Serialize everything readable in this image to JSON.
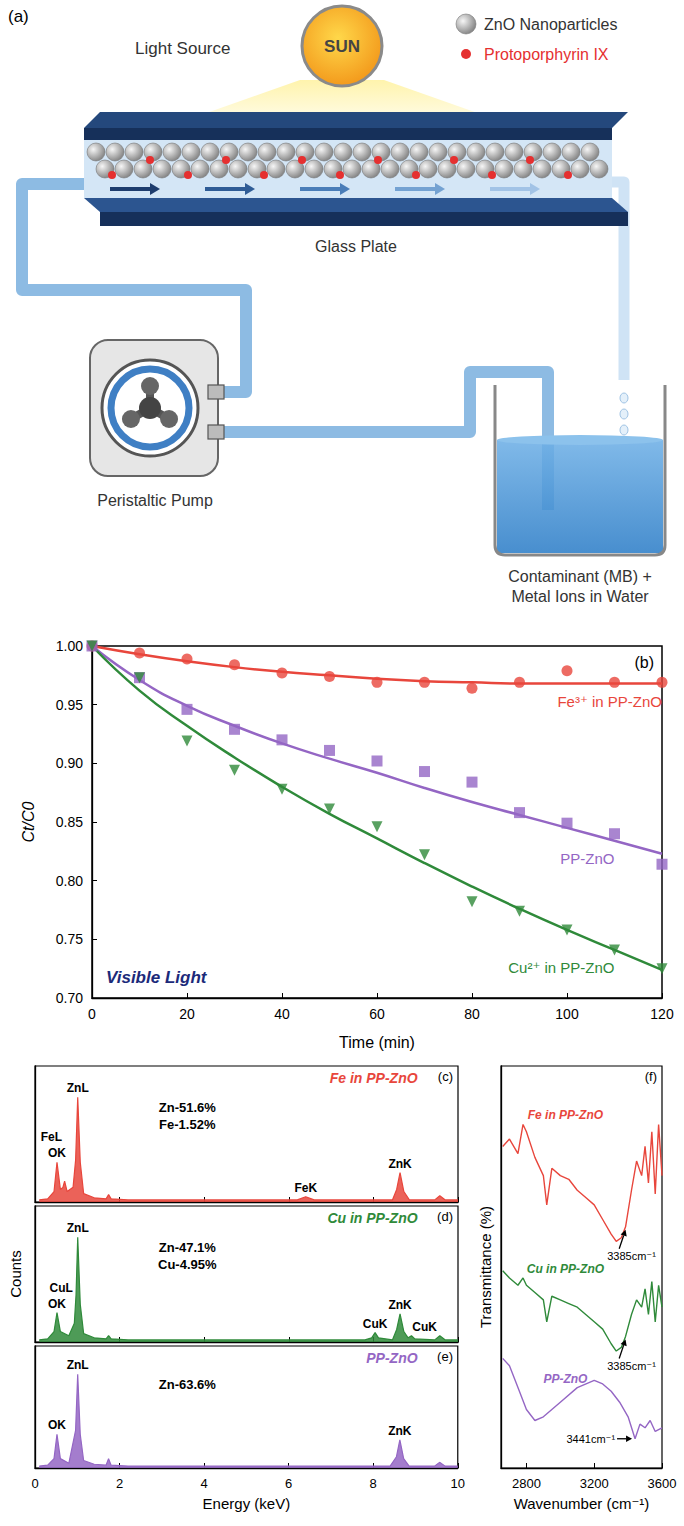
{
  "diagram": {
    "panel": "(a)",
    "light_source": "Light Source",
    "sun": "SUN",
    "key": [
      "ZnO Nanoparticles",
      "Protoporphyrin IX"
    ],
    "plate": "Glass Plate",
    "pump": "Peristaltic Pump",
    "reservoir": [
      "Contaminant (MB) +",
      "Metal Ions in Water"
    ]
  },
  "chart_data": [
    {
      "panel": "(b)",
      "type": "scatter",
      "xlabel": "Time (min)",
      "ylabel": "Ct/C0",
      "annotation": "Visible Light",
      "x": [
        0,
        10,
        20,
        30,
        40,
        50,
        60,
        70,
        80,
        90,
        100,
        110,
        120
      ],
      "xlim": [
        0,
        120
      ],
      "xticks": [
        0,
        20,
        40,
        60,
        80,
        100,
        120
      ],
      "ylim": [
        0.7,
        1.0
      ],
      "yticks": [
        {
          "value": 0.7,
          "label": "0.70"
        },
        0.75,
        {
          "value": 0.8,
          "label": "0.80"
        },
        0.85,
        {
          "value": 0.9,
          "label": "0.90"
        },
        0.95,
        {
          "value": 1.0,
          "label": "1.00"
        }
      ],
      "grid": false,
      "series": [
        {
          "name": "Fe³⁺ in PP-ZnO",
          "color": "#e8463c",
          "marker": "circle",
          "values": [
            1.0,
            0.994,
            0.989,
            0.984,
            0.977,
            0.974,
            0.969,
            0.969,
            0.964,
            0.969,
            0.979,
            0.969,
            0.969
          ],
          "fit": [
            1.0,
            0.993,
            0.987,
            0.982,
            0.978,
            0.975,
            0.972,
            0.97,
            0.969,
            0.968,
            0.968,
            0.968,
            0.968
          ]
        },
        {
          "name": "PP-ZnO",
          "color": "#9466c4",
          "marker": "square",
          "values": [
            1.0,
            0.973,
            0.946,
            0.929,
            0.92,
            0.911,
            0.902,
            0.893,
            0.884,
            0.858,
            0.849,
            0.84,
            0.814
          ],
          "fit": [
            1.0,
            0.971,
            0.949,
            0.932,
            0.917,
            0.904,
            0.892,
            0.879,
            0.867,
            0.856,
            0.845,
            0.834,
            0.823
          ]
        },
        {
          "name": "Cu²⁺ in PP-ZnO",
          "color": "#2f8a3a",
          "marker": "triangle-down",
          "values": [
            1.0,
            0.973,
            0.919,
            0.894,
            0.878,
            0.861,
            0.846,
            0.822,
            0.782,
            0.774,
            0.758,
            0.741,
            0.725
          ],
          "fit": [
            1.0,
            0.962,
            0.932,
            0.905,
            0.88,
            0.857,
            0.836,
            0.815,
            0.795,
            0.776,
            0.758,
            0.741,
            0.724
          ]
        }
      ]
    },
    {
      "panel": "(c)",
      "type": "line",
      "title": "Fe in PP-ZnO",
      "color": "#e8463c",
      "composition": [
        "Zn-51.6%",
        "Fe-1.52%"
      ],
      "x": [
        0.1,
        0.3,
        0.45,
        0.52,
        0.6,
        0.66,
        0.7,
        0.76,
        0.9,
        0.96,
        1.01,
        1.07,
        1.15,
        1.4,
        1.68,
        1.74,
        1.8,
        2.2,
        4,
        6.2,
        6.4,
        6.6,
        7.5,
        8.45,
        8.55,
        8.63,
        8.72,
        8.85,
        9.45,
        9.57,
        9.7,
        10
      ],
      "values": [
        2,
        3,
        10,
        38,
        12,
        14,
        20,
        10,
        14,
        40,
        100,
        38,
        8,
        4,
        3,
        7,
        3,
        2,
        2,
        2,
        5,
        2,
        2,
        2,
        12,
        28,
        10,
        2,
        2,
        6,
        2,
        2
      ],
      "xlim": [
        0,
        10
      ],
      "xticks": [
        0,
        2,
        4,
        6,
        8,
        10
      ],
      "ylim": [
        0,
        130
      ],
      "tick_labels": false,
      "annotations": [
        {
          "text": "OK",
          "x": 0.52
        },
        {
          "text": "FeL",
          "x": 0.7
        },
        {
          "text": "ZnL",
          "x": 1.01
        },
        {
          "text": "FeK",
          "x": 6.4
        },
        {
          "text": "ZnK",
          "x": 8.63
        }
      ]
    },
    {
      "panel": "(d)",
      "type": "line",
      "title": "Cu in PP-ZnO",
      "color": "#2f8a3a",
      "ylabel": "Counts",
      "composition": [
        "Zn-47.1%",
        "Cu-4.95%"
      ],
      "x": [
        0.1,
        0.3,
        0.45,
        0.52,
        0.6,
        0.8,
        0.93,
        0.97,
        1.01,
        1.07,
        1.15,
        1.4,
        1.68,
        1.74,
        1.8,
        2.2,
        4,
        7.8,
        7.96,
        8.04,
        8.12,
        8.45,
        8.55,
        8.63,
        8.72,
        8.82,
        8.9,
        8.98,
        9.45,
        9.57,
        9.7,
        10
      ],
      "values": [
        2,
        3,
        10,
        28,
        10,
        6,
        18,
        45,
        100,
        36,
        8,
        4,
        3,
        6,
        3,
        2,
        2,
        2,
        4,
        9,
        4,
        2,
        12,
        27,
        10,
        4,
        6,
        3,
        2,
        6,
        2,
        2
      ],
      "xlim": [
        0,
        10
      ],
      "xticks": [
        0,
        2,
        4,
        6,
        8,
        10
      ],
      "ylim": [
        0,
        130
      ],
      "tick_labels": false,
      "annotations": [
        {
          "text": "OK",
          "x": 0.52
        },
        {
          "text": "CuL",
          "x": 0.93
        },
        {
          "text": "ZnL",
          "x": 1.01
        },
        {
          "text": "CuK",
          "x": 8.04
        },
        {
          "text": "ZnK",
          "x": 8.63
        },
        {
          "text": "CuK",
          "x": 8.9
        }
      ]
    },
    {
      "panel": "(e)",
      "type": "line",
      "title": "PP-ZnO",
      "color": "#9466c4",
      "xlabel": "Energy (keV)",
      "composition": [
        "Zn-63.6%"
      ],
      "x": [
        0.1,
        0.3,
        0.45,
        0.52,
        0.6,
        0.8,
        0.96,
        1.01,
        1.07,
        1.15,
        1.4,
        1.68,
        1.74,
        1.8,
        2.2,
        4,
        8.4,
        8.55,
        8.63,
        8.72,
        8.85,
        9.45,
        9.57,
        9.7,
        10
      ],
      "values": [
        2,
        3,
        10,
        36,
        10,
        5,
        40,
        100,
        36,
        8,
        4,
        3,
        10,
        3,
        2,
        2,
        2,
        12,
        30,
        10,
        2,
        2,
        6,
        2,
        2
      ],
      "xlim": [
        0,
        10
      ],
      "xticks": [
        0,
        2,
        4,
        6,
        8,
        10
      ],
      "ylim": [
        0,
        130
      ],
      "tick_labels": "x",
      "annotations": [
        {
          "text": "OK",
          "x": 0.52
        },
        {
          "text": "ZnL",
          "x": 1.01
        },
        {
          "text": "ZnK",
          "x": 8.63
        }
      ]
    },
    {
      "panel": "(f)",
      "type": "line",
      "xlabel": "Wavenumber (cm⁻¹)",
      "ylabel": "Transmittance (%)",
      "xlim": [
        2650,
        3600
      ],
      "xticks": [
        2800,
        3200,
        3600
      ],
      "ylim": [
        0,
        110
      ],
      "tick_labels": "x",
      "series": [
        {
          "name": "Fe in PP-ZnO",
          "color": "#e8463c",
          "x": [
            2660,
            2700,
            2750,
            2780,
            2800,
            2850,
            2900,
            2920,
            2950,
            3000,
            3050,
            3100,
            3150,
            3200,
            3250,
            3300,
            3330,
            3360,
            3385,
            3420,
            3450,
            3480,
            3500,
            3520,
            3540,
            3560,
            3580,
            3600
          ],
          "values": [
            88,
            90,
            86,
            94,
            92,
            85,
            80,
            72,
            82,
            80,
            79,
            76,
            74,
            72,
            68,
            64,
            62,
            63,
            66,
            76,
            84,
            80,
            88,
            78,
            92,
            75,
            94,
            80
          ]
        },
        {
          "name": "Cu in PP-ZnO",
          "color": "#2f8a3a",
          "x": [
            2660,
            2700,
            2750,
            2780,
            2800,
            2850,
            2900,
            2920,
            2950,
            3000,
            3050,
            3100,
            3150,
            3200,
            3250,
            3300,
            3330,
            3360,
            3385,
            3420,
            3450,
            3480,
            3500,
            3520,
            3540,
            3560,
            3580,
            3600
          ],
          "values": [
            54,
            52,
            50,
            52,
            50,
            48,
            46,
            40,
            47,
            46,
            45,
            44,
            42,
            40,
            38,
            34,
            32,
            33,
            36,
            42,
            46,
            44,
            49,
            42,
            51,
            40,
            50,
            44
          ]
        },
        {
          "name": "PP-ZnO",
          "color": "#9466c4",
          "x": [
            2660,
            2700,
            2750,
            2800,
            2850,
            2900,
            2950,
            3000,
            3100,
            3200,
            3250,
            3300,
            3350,
            3400,
            3441,
            3470,
            3500,
            3530,
            3560,
            3600
          ],
          "values": [
            30,
            28,
            22,
            16,
            13,
            14,
            16,
            18,
            22,
            24,
            23,
            21,
            18,
            14,
            8,
            12,
            11,
            13,
            10,
            11
          ]
        }
      ],
      "annotations": [
        {
          "text": "3385cm⁻¹",
          "x": 3385,
          "series": "Fe in PP-ZnO"
        },
        {
          "text": "3385cm⁻¹",
          "x": 3385,
          "series": "Cu in PP-ZnO"
        },
        {
          "text": "3441cm⁻¹",
          "x": 3441,
          "series": "PP-ZnO"
        }
      ]
    }
  ]
}
